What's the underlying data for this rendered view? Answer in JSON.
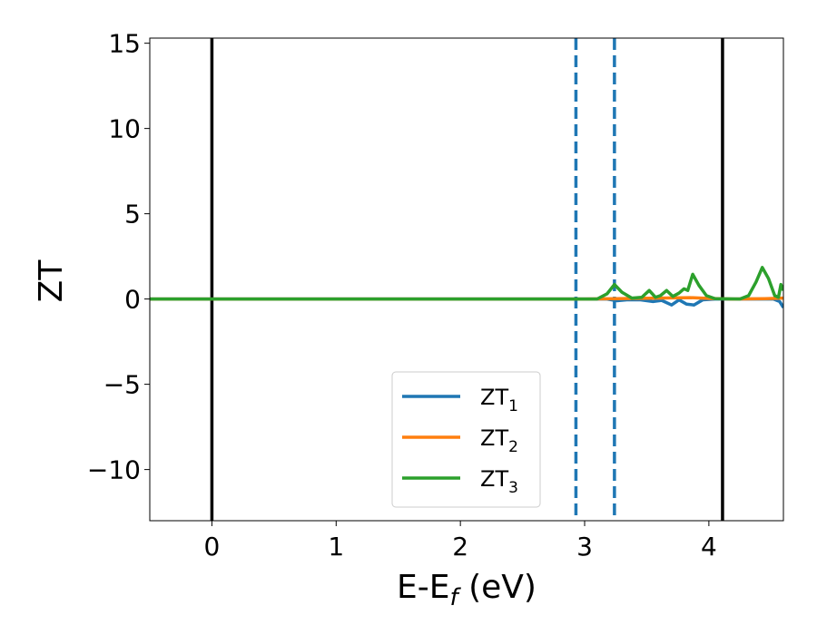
{
  "chart_data": {
    "type": "line",
    "xlabel": {
      "main": "E-E",
      "sub": "f",
      "unit": " (eV)"
    },
    "ylabel": "ZT",
    "xlim": [
      -0.5,
      4.6
    ],
    "ylim": [
      -13,
      15.3
    ],
    "xticks": [
      0,
      1,
      2,
      3,
      4
    ],
    "yticks": [
      15,
      10,
      5,
      0,
      -5,
      -10
    ],
    "ytick_labels": [
      "15",
      "10",
      "5",
      "0",
      "−5",
      "−10"
    ],
    "legend": {
      "placement": "lower center"
    },
    "vlines_solid": [
      0.0,
      4.11
    ],
    "vlines_dashed": [
      2.93,
      3.24
    ],
    "colors": {
      "ZT1": "#1f77b4",
      "ZT2": "#ff7f0e",
      "ZT3": "#2ca02c",
      "vline_solid": "#000000",
      "vline_dashed": "#1f77b4"
    },
    "series": [
      {
        "name": "ZT1",
        "label_main": "ZT",
        "label_sub": "1",
        "color": "#1f77b4",
        "points": [
          [
            -0.5,
            0
          ],
          [
            2.9,
            0
          ],
          [
            3.18,
            0
          ],
          [
            3.26,
            -0.1
          ],
          [
            3.34,
            -0.05
          ],
          [
            3.45,
            -0.05
          ],
          [
            3.55,
            -0.15
          ],
          [
            3.62,
            -0.08
          ],
          [
            3.7,
            -0.35
          ],
          [
            3.76,
            -0.05
          ],
          [
            3.82,
            -0.3
          ],
          [
            3.88,
            -0.35
          ],
          [
            3.95,
            -0.05
          ],
          [
            4.05,
            0
          ],
          [
            4.4,
            0
          ],
          [
            4.52,
            0
          ],
          [
            4.57,
            -0.15
          ],
          [
            4.6,
            -0.5
          ]
        ]
      },
      {
        "name": "ZT2",
        "label_main": "ZT",
        "label_sub": "2",
        "color": "#ff7f0e",
        "points": [
          [
            -0.5,
            0
          ],
          [
            3.0,
            0
          ],
          [
            3.25,
            0.02
          ],
          [
            3.6,
            0.05
          ],
          [
            3.85,
            0.08
          ],
          [
            4.0,
            0.03
          ],
          [
            4.2,
            0
          ],
          [
            4.45,
            0.02
          ],
          [
            4.6,
            0.05
          ]
        ]
      },
      {
        "name": "ZT3",
        "label_main": "ZT",
        "label_sub": "3",
        "color": "#2ca02c",
        "points": [
          [
            -0.5,
            0
          ],
          [
            3.1,
            0
          ],
          [
            3.18,
            0.3
          ],
          [
            3.24,
            0.85
          ],
          [
            3.3,
            0.4
          ],
          [
            3.38,
            0.05
          ],
          [
            3.46,
            0.1
          ],
          [
            3.52,
            0.5
          ],
          [
            3.57,
            0.1
          ],
          [
            3.61,
            0.2
          ],
          [
            3.66,
            0.5
          ],
          [
            3.71,
            0.15
          ],
          [
            3.76,
            0.35
          ],
          [
            3.8,
            0.6
          ],
          [
            3.83,
            0.5
          ],
          [
            3.87,
            1.45
          ],
          [
            3.92,
            0.8
          ],
          [
            3.98,
            0.2
          ],
          [
            4.05,
            0.02
          ],
          [
            4.25,
            0
          ],
          [
            4.32,
            0.2
          ],
          [
            4.38,
            1.0
          ],
          [
            4.43,
            1.85
          ],
          [
            4.48,
            1.2
          ],
          [
            4.53,
            0.2
          ],
          [
            4.56,
            0.1
          ],
          [
            4.58,
            0.85
          ],
          [
            4.6,
            0.5
          ]
        ]
      }
    ]
  }
}
